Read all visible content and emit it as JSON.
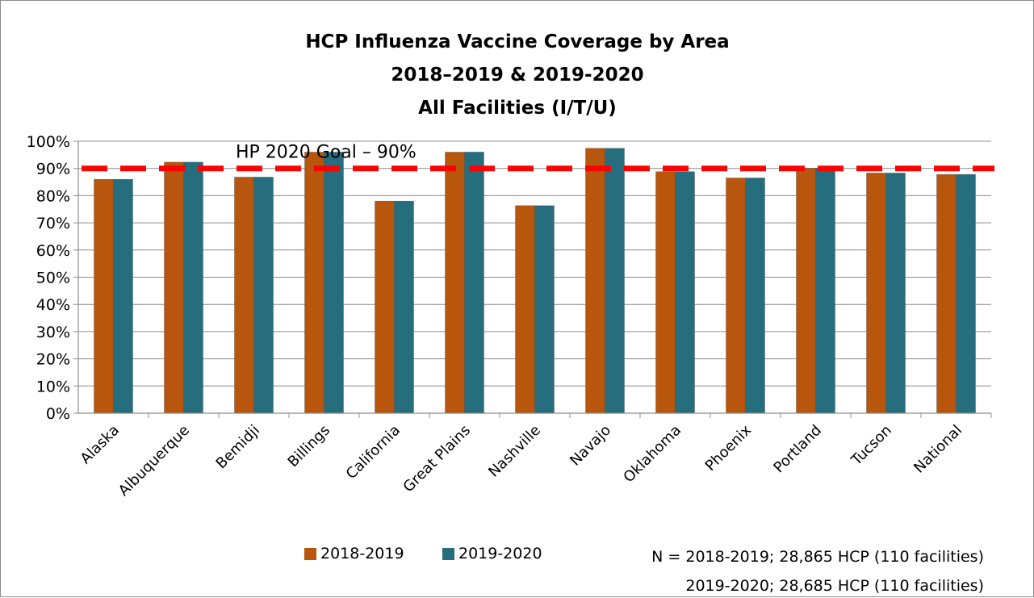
{
  "chart_data": {
    "type": "bar",
    "title": [
      "HCP Influenza Vaccine Coverage by Area",
      "2018–2019 & 2019-2020",
      "All Facilities (I/T/U)"
    ],
    "categories": [
      "Alaska",
      "Albuquerque",
      "Bemidji",
      "Billings",
      "California",
      "Great Plains",
      "Nashville",
      "Navajo",
      "Oklahoma",
      "Phoenix",
      "Portland",
      "Tucson",
      "National"
    ],
    "series": [
      {
        "name": "2018-2019",
        "color": "#b8560d",
        "values": [
          86,
          92.3,
          86.8,
          96,
          78,
          96,
          76.3,
          97.4,
          88.8,
          86.5,
          90.1,
          88.3,
          87.8
        ]
      },
      {
        "name": "2019-2020",
        "color": "#266d7e",
        "values": [
          86,
          92.3,
          86.8,
          96,
          78,
          96,
          76.3,
          97.4,
          88.8,
          86.5,
          90.1,
          88.3,
          87.8
        ]
      }
    ],
    "yticks": [
      "0%",
      "10%",
      "20%",
      "30%",
      "40%",
      "50%",
      "60%",
      "70%",
      "80%",
      "90%",
      "100%"
    ],
    "ylim": [
      0,
      100
    ],
    "grid": true,
    "legend_position": "bottom",
    "goal": {
      "label": "HP 2020 Goal – 90%",
      "value": 90,
      "color": "#ff0000"
    },
    "notes": [
      "N = 2018-2019; 28,865 HCP (110 facilities)",
      "2019-2020; 28,685 HCP (110 facilities)"
    ]
  }
}
